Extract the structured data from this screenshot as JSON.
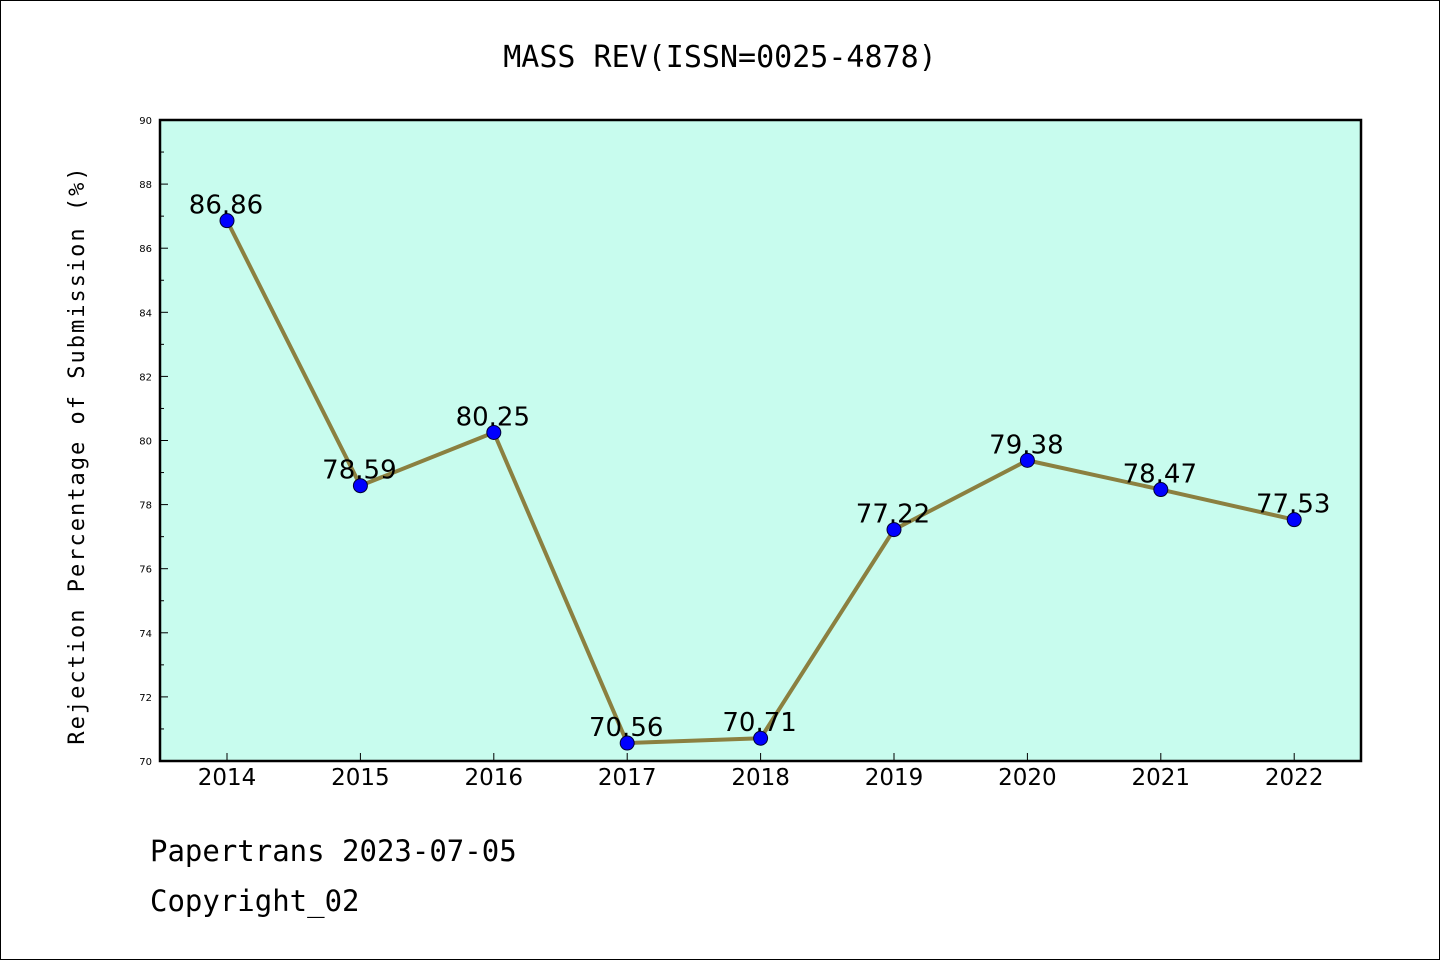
{
  "chart_data": {
    "type": "line",
    "title": "MASS REV(ISSN=0025-4878)",
    "xlabel": "",
    "ylabel": "Rejection Percentage of Submission (%)",
    "x": [
      "2014",
      "2015",
      "2016",
      "2017",
      "2018",
      "2019",
      "2020",
      "2021",
      "2022"
    ],
    "series": [
      {
        "values": [
          86.86,
          78.59,
          80.25,
          70.56,
          70.71,
          77.22,
          79.38,
          78.47,
          77.53
        ],
        "labels": [
          "86.86",
          "78.59",
          "80.25",
          "70.56",
          "70.71",
          "77.22",
          "79.38",
          "78.47",
          "77.53"
        ]
      }
    ],
    "ylim": [
      70,
      90
    ],
    "yticks": [
      70,
      72,
      74,
      76,
      78,
      80,
      82,
      84,
      86,
      88,
      90
    ],
    "ytick_labels": [
      "70",
      "72",
      "74",
      "76",
      "78",
      "80",
      "82",
      "84",
      "86",
      "88",
      "90"
    ],
    "grid": false,
    "colors": {
      "plot_background": "#c8fcee",
      "line": "#8b8040",
      "marker": "#0000ff"
    }
  },
  "footer": {
    "line1": "Papertrans 2023-07-05",
    "line2": "Copyright_02"
  }
}
